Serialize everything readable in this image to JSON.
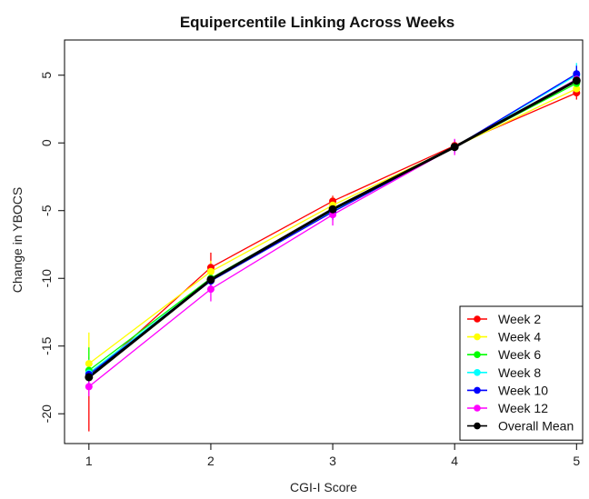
{
  "chart_data": {
    "type": "line",
    "title": "Equipercentile Linking Across Weeks",
    "xlabel": "CGI-I Score",
    "ylabel": "Change in YBOCS",
    "x": [
      1,
      2,
      3,
      4,
      5
    ],
    "xlim": [
      0.8,
      5.05
    ],
    "ylim": [
      -22.2,
      7.6
    ],
    "x_ticks": [
      "1",
      "2",
      "3",
      "4",
      "5"
    ],
    "y_ticks": [
      "-20",
      "-15",
      "-10",
      "-5",
      "0",
      "5"
    ],
    "grid": false,
    "legend_position": "bottom-right",
    "series": [
      {
        "name": "Week 2",
        "color": "#ff0000",
        "values": [
          -17.3,
          -9.2,
          -4.3,
          -0.2,
          3.7
        ],
        "err_low": [
          -21.3,
          -10.2,
          -4.9,
          -0.7,
          3.2
        ],
        "err_high": [
          -15.8,
          -8.1,
          -3.9,
          0.2,
          4.3
        ]
      },
      {
        "name": "Week 4",
        "color": "#ffff00",
        "values": [
          -16.3,
          -9.5,
          -4.6,
          -0.3,
          4.0
        ],
        "err_low": [
          -17.3,
          -10.3,
          -5.2,
          -0.7,
          3.5
        ],
        "err_high": [
          -14.0,
          -8.7,
          -4.0,
          0.1,
          4.6
        ]
      },
      {
        "name": "Week 6",
        "color": "#00ff00",
        "values": [
          -16.8,
          -10.0,
          -4.9,
          -0.3,
          4.4
        ],
        "err_low": [
          -17.8,
          -10.7,
          -5.5,
          -0.7,
          3.9
        ],
        "err_high": [
          -15.1,
          -9.2,
          -4.3,
          0.1,
          5.0
        ]
      },
      {
        "name": "Week 8",
        "color": "#00ffff",
        "values": [
          -17.0,
          -10.1,
          -5.0,
          -0.3,
          5.0
        ],
        "err_low": [
          -17.8,
          -10.8,
          -5.6,
          -0.7,
          4.4
        ],
        "err_high": [
          -16.0,
          -9.4,
          -4.4,
          0.1,
          5.9
        ]
      },
      {
        "name": "Week 10",
        "color": "#0000ff",
        "values": [
          -17.1,
          -10.2,
          -5.1,
          -0.3,
          5.1
        ],
        "err_low": [
          -17.8,
          -10.9,
          -5.7,
          -0.7,
          4.5
        ],
        "err_high": [
          -16.3,
          -9.5,
          -4.5,
          0.1,
          5.7
        ]
      },
      {
        "name": "Week 12",
        "color": "#ff00ff",
        "values": [
          -18.0,
          -10.8,
          -5.3,
          -0.3,
          4.7
        ],
        "err_low": [
          -18.7,
          -11.7,
          -6.1,
          -0.9,
          4.1
        ],
        "err_high": [
          -17.1,
          -9.9,
          -4.6,
          0.3,
          5.3
        ]
      },
      {
        "name": "Overall Mean",
        "color": "#000000",
        "values": [
          -17.3,
          -10.1,
          -4.9,
          -0.3,
          4.6
        ],
        "err_low": [
          -17.3,
          -10.1,
          -4.9,
          -0.3,
          4.6
        ],
        "err_high": [
          -17.3,
          -10.1,
          -4.9,
          -0.3,
          4.6
        ]
      }
    ]
  }
}
